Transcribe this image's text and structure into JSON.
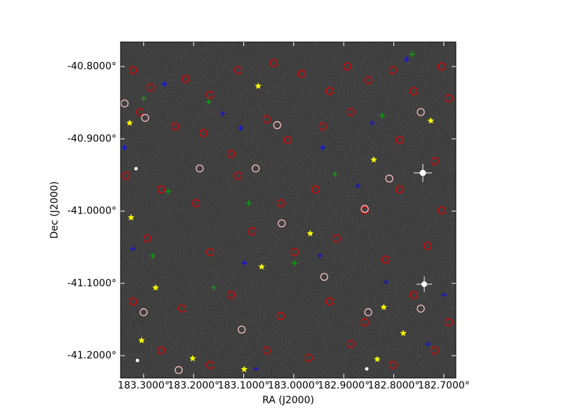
{
  "chart_data": {
    "type": "scatter",
    "xlabel": "RA (J2000)",
    "ylabel": "Dec (J2000)",
    "xlim": [
      183.346,
      182.676
    ],
    "ylim": [
      -41.231,
      -40.766
    ],
    "xticks": [
      {
        "value": 183.3,
        "label": "183.3000°"
      },
      {
        "value": 183.2,
        "label": "183.2000°"
      },
      {
        "value": 183.1,
        "label": "183.1000°"
      },
      {
        "value": 183.0,
        "label": "183.0000°"
      },
      {
        "value": 182.9,
        "label": "182.9000°"
      },
      {
        "value": 182.8,
        "label": "182.8000°"
      },
      {
        "value": 182.7,
        "label": "182.7000°"
      }
    ],
    "yticks": [
      {
        "value": -40.8,
        "label": "-40.8000°"
      },
      {
        "value": -40.9,
        "label": "-40.9000°"
      },
      {
        "value": -41.0,
        "label": "-41.0000°"
      },
      {
        "value": -41.1,
        "label": "-41.1000°"
      },
      {
        "value": -41.2,
        "label": "-41.2000°"
      }
    ],
    "series": [
      {
        "marker": "circle",
        "color": "#e00000",
        "x": [
          183.321,
          183.286,
          183.216,
          183.167,
          183.111,
          183.04,
          182.984,
          182.928,
          182.893,
          182.851,
          182.802,
          182.76,
          182.704,
          182.69,
          183.307,
          183.237,
          183.181,
          183.125,
          183.054,
          183.012,
          182.942,
          182.886,
          182.788,
          182.718,
          183.335,
          183.265,
          183.195,
          183.111,
          183.026,
          182.956,
          182.858,
          182.788,
          182.704,
          183.293,
          183.167,
          183.083,
          182.998,
          182.914,
          182.816,
          182.732,
          183.321,
          183.223,
          183.125,
          183.026,
          182.928,
          182.858,
          182.76,
          182.69,
          183.265,
          183.167,
          183.054,
          182.97,
          182.886,
          182.802,
          182.718
        ],
        "y": [
          -40.805,
          -40.829,
          -40.817,
          -40.839,
          -40.805,
          -40.795,
          -40.81,
          -40.834,
          -40.8,
          -40.819,
          -40.805,
          -40.834,
          -40.8,
          -40.844,
          -40.863,
          -40.883,
          -40.892,
          -40.921,
          -40.873,
          -40.902,
          -40.883,
          -40.863,
          -40.902,
          -40.931,
          -40.951,
          -40.97,
          -40.989,
          -40.951,
          -40.989,
          -40.97,
          -40.999,
          -40.97,
          -40.999,
          -41.038,
          -41.057,
          -41.028,
          -41.057,
          -41.038,
          -41.067,
          -41.048,
          -41.125,
          -41.135,
          -41.116,
          -41.145,
          -41.125,
          -41.154,
          -41.116,
          -41.154,
          -41.193,
          -41.213,
          -41.193,
          -41.203,
          -41.184,
          -41.213,
          -41.193
        ]
      },
      {
        "marker": "circle",
        "color": "#ffc0cb",
        "x": [
          183.338,
          183.297,
          183.188,
          183.076,
          183.024,
          182.858,
          182.809,
          183.3,
          183.104,
          182.851,
          182.746,
          183.23,
          183.033,
          182.746,
          182.939
        ],
        "y": [
          -40.851,
          -40.871,
          -40.941,
          -40.941,
          -41.017,
          -40.997,
          -40.955,
          -41.14,
          -41.164,
          -41.14,
          -41.135,
          -41.22,
          -40.881,
          -40.863,
          -41.091
        ]
      },
      {
        "marker": "cross",
        "color": "#1010e0",
        "x": [
          183.338,
          183.258,
          183.141,
          183.106,
          182.942,
          182.844,
          182.774,
          183.321,
          183.099,
          182.948,
          182.816,
          182.7,
          182.732,
          183.076,
          182.872
        ],
        "y": [
          -40.912,
          -40.824,
          -40.865,
          -40.885,
          -40.912,
          -40.878,
          -40.79,
          -41.052,
          -41.072,
          -41.062,
          -41.098,
          -41.116,
          -41.184,
          -41.218,
          -40.965
        ]
      },
      {
        "marker": "cross",
        "color": "#10a010",
        "x": [
          183.3,
          183.251,
          183.17,
          183.09,
          182.998,
          182.917,
          182.823,
          182.763,
          183.16,
          183.282
        ],
        "y": [
          -40.844,
          -40.973,
          -40.849,
          -40.989,
          -41.072,
          -40.949,
          -40.868,
          -40.783,
          -41.106,
          -41.062
        ]
      },
      {
        "marker": "star",
        "color": "#ffff00",
        "x": [
          183.071,
          183.328,
          182.726,
          182.84,
          183.325,
          182.967,
          183.064,
          183.276,
          182.82,
          182.781,
          183.304,
          183.202,
          182.833,
          183.099
        ],
        "y": [
          -40.827,
          -40.878,
          -40.875,
          -40.929,
          -41.009,
          -41.031,
          -41.077,
          -41.106,
          -41.133,
          -41.169,
          -41.179,
          -41.204,
          -41.205,
          -41.219
        ]
      }
    ]
  }
}
